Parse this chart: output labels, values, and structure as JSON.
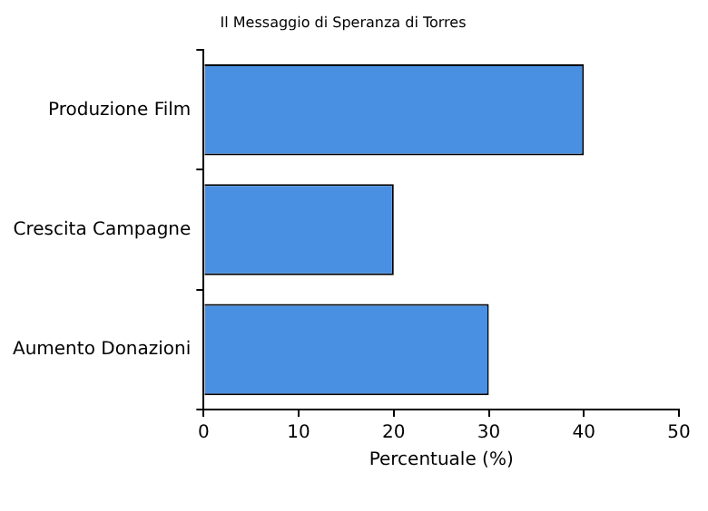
{
  "chart_data": {
    "type": "bar",
    "orientation": "horizontal",
    "title": "Il Messaggio di Speranza di Torres",
    "xlabel": "Percentuale (%)",
    "categories": [
      "Produzione Film",
      "Crescita Campagne",
      "Aumento Donazioni"
    ],
    "values": [
      40,
      20,
      30
    ],
    "color": "#4a90e2",
    "xlim": [
      0,
      50
    ],
    "xticks": [
      0,
      10,
      20,
      30,
      40,
      50
    ],
    "grid": false,
    "legend": false
  }
}
